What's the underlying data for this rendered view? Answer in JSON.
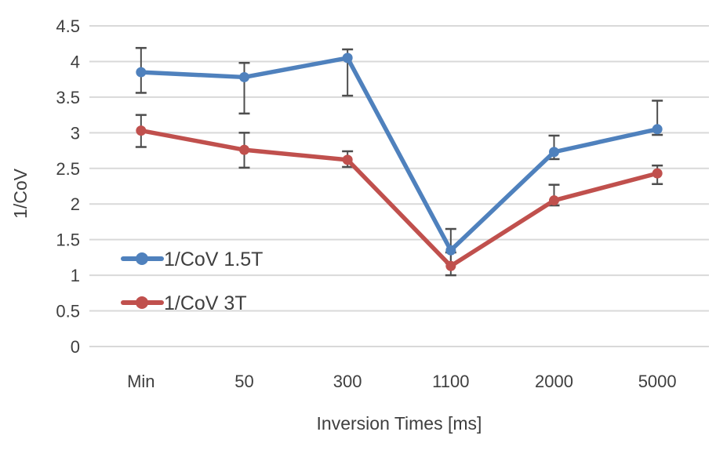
{
  "chart_data": {
    "type": "line",
    "title": "",
    "xlabel": "Inversion Times [ms]",
    "ylabel": "1/CoV",
    "categories": [
      "Min",
      "50",
      "300",
      "1100",
      "2000",
      "5000"
    ],
    "series": [
      {
        "name": "1/CoV 1.5T",
        "color": "#4F81BD",
        "values": [
          3.85,
          3.78,
          4.05,
          1.35,
          2.73,
          3.05
        ],
        "error_upper": [
          4.19,
          3.98,
          4.17,
          1.65,
          2.96,
          3.45
        ],
        "error_lower": [
          3.56,
          3.27,
          3.52,
          1.17,
          2.63,
          2.97
        ]
      },
      {
        "name": "1/CoV 3T",
        "color": "#C0504D",
        "values": [
          3.03,
          2.76,
          2.62,
          1.13,
          2.05,
          2.43
        ],
        "error_upper": [
          3.25,
          3.0,
          2.74,
          1.32,
          2.27,
          2.54
        ],
        "error_lower": [
          2.8,
          2.51,
          2.52,
          1.0,
          1.98,
          2.28
        ]
      }
    ],
    "ylim": [
      0,
      4.5
    ],
    "yticks": [
      0,
      0.5,
      1,
      1.5,
      2,
      2.5,
      3,
      3.5,
      4,
      4.5
    ],
    "ytick_labels": [
      "0",
      "0.5",
      "1",
      "1.5",
      "2",
      "2.5",
      "3",
      "3.5",
      "4",
      "4.5"
    ],
    "grid": "horizontal",
    "legend_position": "inside-left",
    "legend_entries": [
      "1/CoV 1.5T",
      "1/CoV 3T"
    ]
  },
  "colors": {
    "gridline": "#D9D9D9",
    "error_bar": "#4D4D4D",
    "text": "#3F3F3F",
    "background": "#FFFFFF"
  }
}
